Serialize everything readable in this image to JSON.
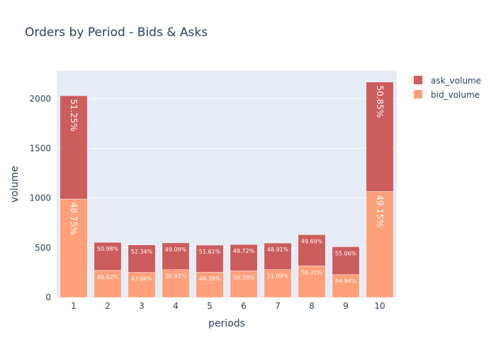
{
  "chart_data": {
    "type": "bar",
    "barmode": "stack",
    "title": "Orders by Period - Bids & Asks",
    "xlabel": "periods",
    "ylabel": "volume",
    "categories": [
      "1",
      "2",
      "3",
      "4",
      "5",
      "6",
      "7",
      "8",
      "9",
      "10"
    ],
    "yticks": [
      0,
      500,
      1000,
      1500,
      2000
    ],
    "ylim": [
      0,
      2280
    ],
    "grid": true,
    "legend_position": "top-right",
    "series": [
      {
        "name": "bid_volume",
        "color": "#FFA07A",
        "values": [
          990,
          272,
          252,
          280,
          255,
          268,
          280,
          318,
          230,
          1065
        ],
        "labels": [
          "48.75%",
          "49.02%",
          "47.66%",
          "50.91%",
          "48.39%",
          "50.28%",
          "51.09%",
          "50.31%",
          "44.94%",
          "49.15%"
        ]
      },
      {
        "name": "ask_volume",
        "color": "#CD5C5C",
        "values": [
          1040,
          283,
          277,
          270,
          272,
          265,
          268,
          314,
          281,
          1102
        ],
        "labels": [
          "51.25%",
          "50.98%",
          "52.34%",
          "49.09%",
          "51.61%",
          "49.72%",
          "48.91%",
          "49.69%",
          "55.06%",
          "50.85%"
        ]
      }
    ],
    "legend_order": [
      "ask_volume",
      "bid_volume"
    ]
  }
}
